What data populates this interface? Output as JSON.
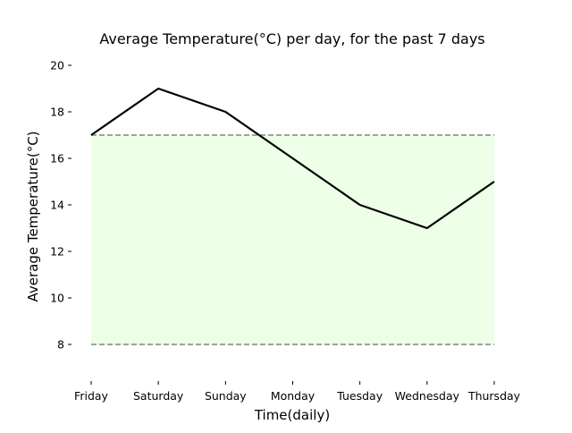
{
  "chart_data": {
    "type": "line",
    "title": "Average Temperature(°C) per day, for the past 7 days",
    "xlabel": "Time(daily)",
    "ylabel": "Average Temperature(°C)",
    "categories": [
      "Friday",
      "Saturday",
      "Sunday",
      "Monday",
      "Tuesday",
      "Wednesday",
      "Thursday"
    ],
    "series": [
      {
        "values": [
          17,
          19,
          18,
          16,
          14,
          13,
          15
        ]
      }
    ],
    "ylim": [
      6.5,
      20
    ],
    "yticks": [
      8,
      10,
      12,
      14,
      16,
      18,
      20
    ],
    "band": {
      "low": 8,
      "high": 17
    },
    "grid": false,
    "colors": {
      "line": "#000000",
      "band_fill": "#eeffe8",
      "reference_lines": "#7a8a7a"
    }
  }
}
